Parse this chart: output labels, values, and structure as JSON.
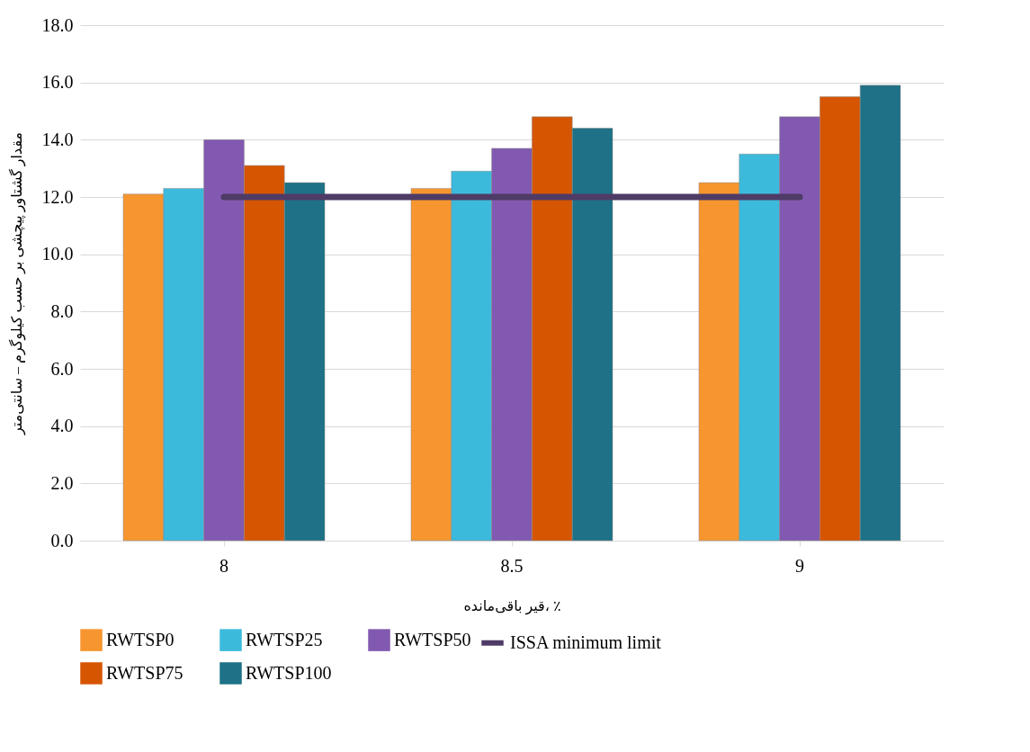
{
  "chart_data": {
    "type": "bar",
    "xlabel": "قیر باقی‌مانده، ٪",
    "ylabel": "مقدار گشتاور پیچشی بر حسب کیلوگرم – سانتی‌متر",
    "categories": [
      "8",
      "8.5",
      "9"
    ],
    "series": [
      {
        "name": "RWTSP0",
        "color": "#f7962f",
        "values": [
          12.1,
          12.3,
          12.5
        ]
      },
      {
        "name": "RWTSP25",
        "color": "#3cbadc",
        "values": [
          12.3,
          12.9,
          13.5
        ]
      },
      {
        "name": "RWTSP50",
        "color": "#8259b0",
        "values": [
          14.0,
          13.7,
          14.8
        ]
      },
      {
        "name": "RWTSP75",
        "color": "#d65500",
        "values": [
          13.1,
          14.8,
          15.5
        ]
      },
      {
        "name": "RWTSP100",
        "color": "#1e7186",
        "values": [
          12.5,
          14.4,
          15.9
        ]
      },
      {
        "name": "ISSA minimum limit",
        "type": "line",
        "color": "#4e3b66",
        "values": [
          12,
          12,
          12
        ]
      }
    ],
    "ylim": [
      0,
      18
    ],
    "yticks": [
      {
        "value": 0,
        "label": "0.0"
      },
      {
        "value": 2,
        "label": "2.0"
      },
      {
        "value": 4,
        "label": "4.0"
      },
      {
        "value": 6,
        "label": "6.0"
      },
      {
        "value": 8,
        "label": "8.0"
      },
      {
        "value": 10,
        "label": "10.0"
      },
      {
        "value": 12,
        "label": "12.0"
      },
      {
        "value": 14,
        "label": "14.0"
      },
      {
        "value": 16,
        "label": "16.0"
      },
      {
        "value": 18,
        "label": "18.0"
      }
    ],
    "grid": "y",
    "legend": "bottom"
  }
}
